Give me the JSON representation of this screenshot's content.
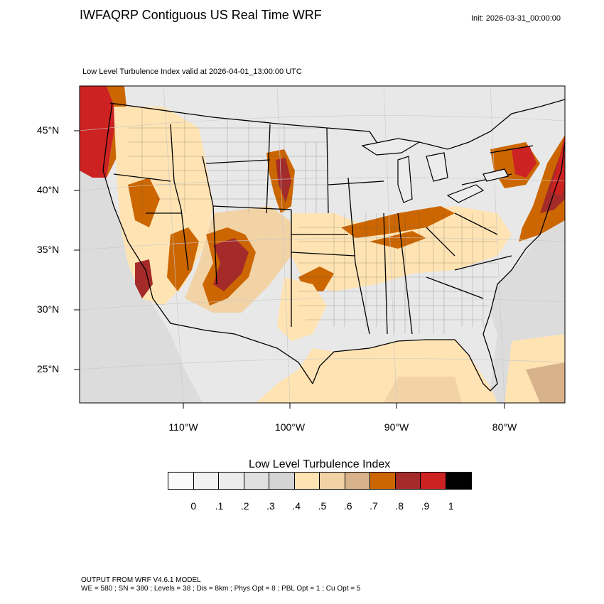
{
  "header": {
    "title": "IWFAQRP Contiguous US Real Time WRF",
    "init": "Init: 2026-03-31_00:00:00",
    "subtitle": "Low Level Turbulence Index valid at 2026-04-01_13:00:00 UTC"
  },
  "map": {
    "lat_labels": [
      "45°N",
      "40°N",
      "35°N",
      "30°N",
      "25°N"
    ],
    "lon_labels": [
      "110°W",
      "100°W",
      "90°W",
      "80°W"
    ],
    "ocean_color": "#ffe4b5",
    "land_base_color": "#e6e6e6"
  },
  "colorbar": {
    "title": "Low Level Turbulence Index",
    "colors": [
      "#fafafa",
      "#f2f2f2",
      "#ececec",
      "#e0e0e0",
      "#d4d4d4",
      "#ffe3b3",
      "#f2d3a6",
      "#d8b28a",
      "#cc6600",
      "#a52a2a",
      "#cc2222",
      "#000000"
    ],
    "ticks": [
      "0",
      ".1",
      ".2",
      ".3",
      ".4",
      ".5",
      ".6",
      ".7",
      ".8",
      ".9",
      "1"
    ]
  },
  "footer": {
    "line1": "OUTPUT FROM WRF V4.6.1 MODEL",
    "line2": "WE = 580 ; SN = 380 ; Levels = 38 ; Dis = 8km ; Phys Opt = 8 ; PBL Opt = 1 ; Cu Opt = 5"
  }
}
